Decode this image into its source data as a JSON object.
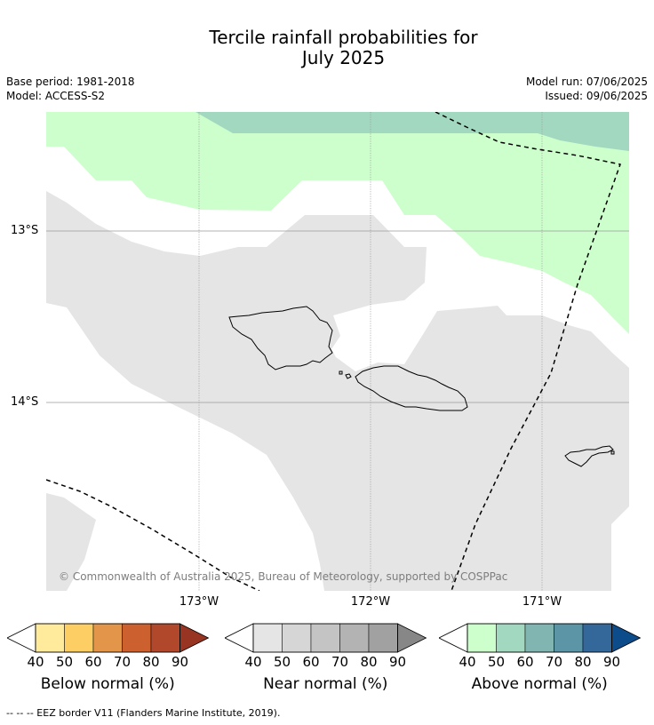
{
  "title_line1": "Tercile rainfall probabilities for",
  "title_line2": "July 2025",
  "meta": {
    "base_period": "Base period: 1981-2018",
    "model": "Model: ACCESS-S2",
    "model_run": "Model run: 07/06/2025",
    "issued": "Issued: 09/06/2025"
  },
  "map": {
    "lat_labels": [
      "13°S",
      "14°S"
    ],
    "lon_labels": [
      "173°W",
      "172°W",
      "171°W"
    ],
    "copyright": "© Commonwealth of Australia 2025, Bureau of Meteorology, supported by COSPPac",
    "colors": {
      "near_normal_40": "#e5e5e5",
      "above_normal_40": "#ccffcc",
      "above_normal_50": "#a1d8bf",
      "eez_line": "#000000",
      "coastline": "#000000",
      "gridline": "#9a9a9a"
    }
  },
  "colorbars": [
    {
      "label": "Below normal (%)",
      "ticks": [
        "40",
        "50",
        "60",
        "70",
        "80",
        "90"
      ],
      "colors": [
        "#ffeb9b",
        "#fdce63",
        "#e3954a",
        "#cc612f",
        "#b1472b",
        "#983422"
      ]
    },
    {
      "label": "Near normal (%)",
      "ticks": [
        "40",
        "50",
        "60",
        "70",
        "80",
        "90"
      ],
      "colors": [
        "#e5e5e5",
        "#d6d6d6",
        "#c4c4c4",
        "#b3b3b3",
        "#a1a1a1",
        "#878787"
      ]
    },
    {
      "label": "Above normal (%)",
      "ticks": [
        "40",
        "50",
        "60",
        "70",
        "80",
        "90"
      ],
      "colors": [
        "#ccffcc",
        "#a1d8bf",
        "#80b5b1",
        "#5c95a5",
        "#34679a",
        "#0d4c8a"
      ]
    }
  ],
  "footnote": "--  --  -- EEZ border V11 (Flanders Marine Institute, 2019)."
}
